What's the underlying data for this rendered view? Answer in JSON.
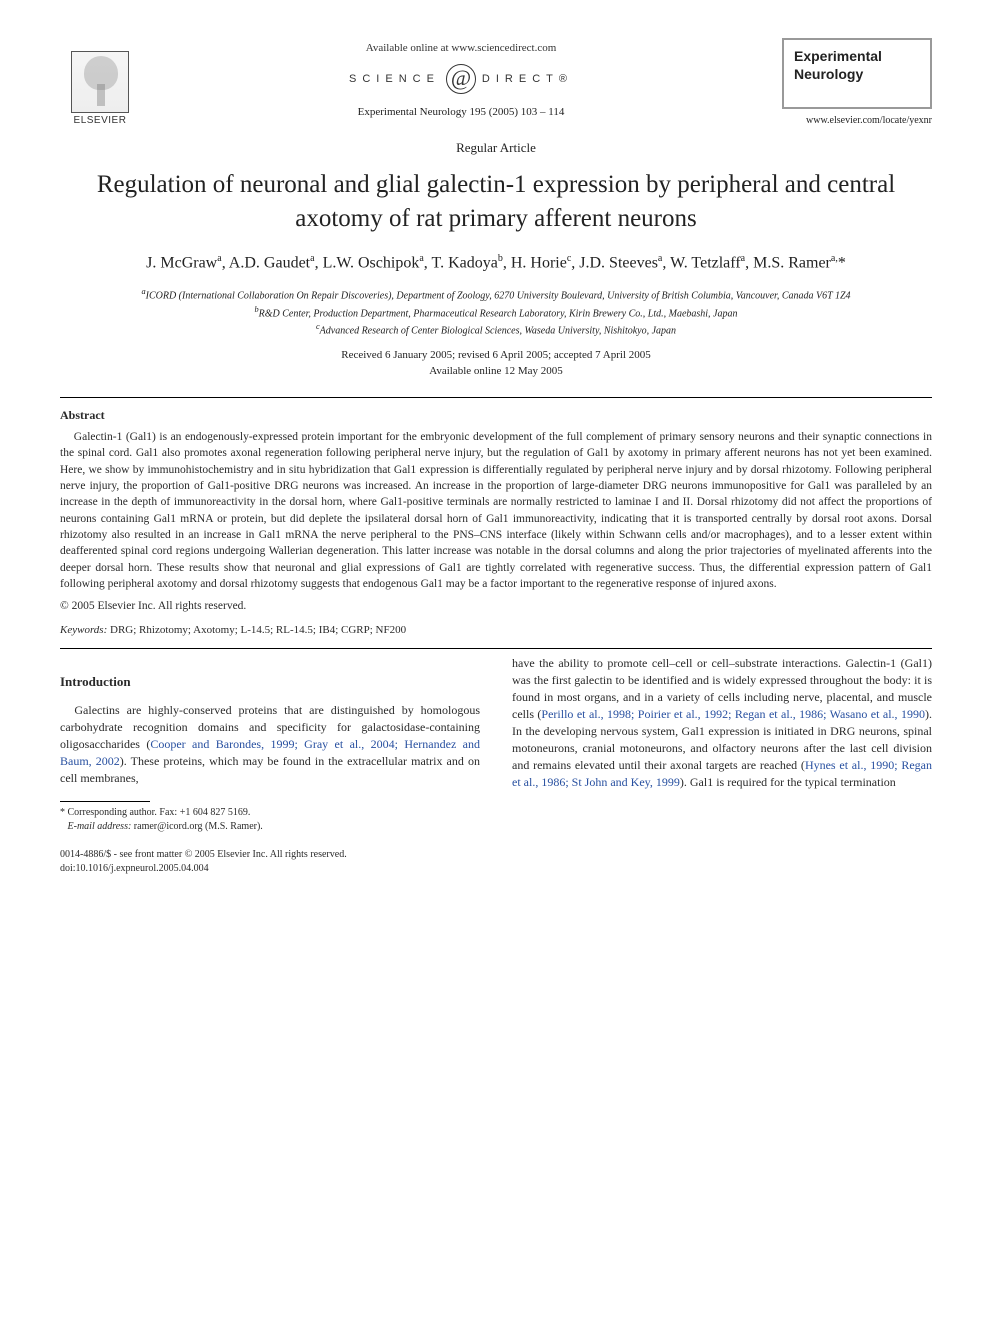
{
  "header": {
    "available_online": "Available online at www.sciencedirect.com",
    "science_direct_left": "SCIENCE",
    "science_direct_right": "DIRECT®",
    "journal_ref": "Experimental Neurology 195 (2005) 103 – 114",
    "publisher_name": "ELSEVIER",
    "journal_title_box": "Experimental Neurology",
    "journal_url": "www.elsevier.com/locate/yexnr"
  },
  "article": {
    "type": "Regular Article",
    "title": "Regulation of neuronal and glial galectin-1 expression by peripheral and central axotomy of rat primary afferent neurons",
    "authors_html": "J. McGraw<sup>a</sup>, A.D. Gaudet<sup>a</sup>, L.W. Oschipok<sup>a</sup>, T. Kadoya<sup>b</sup>, H. Horie<sup>c</sup>, J.D. Steeves<sup>a</sup>, W. Tetzlaff<sup>a</sup>, M.S. Ramer<sup>a,</sup>*",
    "affiliations": {
      "a": "ICORD (International Collaboration On Repair Discoveries), Department of Zoology, 6270 University Boulevard, University of British Columbia, Vancouver, Canada V6T 1Z4",
      "b": "R&D Center, Production Department, Pharmaceutical Research Laboratory, Kirin Brewery Co., Ltd., Maebashi, Japan",
      "c": "Advanced Research of Center Biological Sciences, Waseda University, Nishitokyo, Japan"
    },
    "dates": {
      "received_revised_accepted": "Received 6 January 2005; revised 6 April 2005; accepted 7 April 2005",
      "online": "Available online 12 May 2005"
    }
  },
  "abstract": {
    "heading": "Abstract",
    "body": "Galectin-1 (Gal1) is an endogenously-expressed protein important for the embryonic development of the full complement of primary sensory neurons and their synaptic connections in the spinal cord. Gal1 also promotes axonal regeneration following peripheral nerve injury, but the regulation of Gal1 by axotomy in primary afferent neurons has not yet been examined. Here, we show by immunohistochemistry and in situ hybridization that Gal1 expression is differentially regulated by peripheral nerve injury and by dorsal rhizotomy. Following peripheral nerve injury, the proportion of Gal1-positive DRG neurons was increased. An increase in the proportion of large-diameter DRG neurons immunopositive for Gal1 was paralleled by an increase in the depth of immunoreactivity in the dorsal horn, where Gal1-positive terminals are normally restricted to laminae I and II. Dorsal rhizotomy did not affect the proportions of neurons containing Gal1 mRNA or protein, but did deplete the ipsilateral dorsal horn of Gal1 immunoreactivity, indicating that it is transported centrally by dorsal root axons. Dorsal rhizotomy also resulted in an increase in Gal1 mRNA the nerve peripheral to the PNS–CNS interface (likely within Schwann cells and/or macrophages), and to a lesser extent within deafferented spinal cord regions undergoing Wallerian degeneration. This latter increase was notable in the dorsal columns and along the prior trajectories of myelinated afferents into the deeper dorsal horn. These results show that neuronal and glial expressions of Gal1 are tightly correlated with regenerative success. Thus, the differential expression pattern of Gal1 following peripheral axotomy and dorsal rhizotomy suggests that endogenous Gal1 may be a factor important to the regenerative response of injured axons.",
    "copyright": "© 2005 Elsevier Inc. All rights reserved."
  },
  "keywords": {
    "label": "Keywords:",
    "list": "DRG; Rhizotomy; Axotomy; L-14.5; RL-14.5; IB4; CGRP; NF200"
  },
  "intro": {
    "heading": "Introduction",
    "col1_p1_a": "Galectins are highly-conserved proteins that are distinguished by homologous carbohydrate recognition domains and specificity for galactosidase-containing oligosaccharides (",
    "col1_ref1": "Cooper and Barondes, 1999; Gray et al., 2004; Hernandez and Baum, 2002",
    "col1_p1_b": "). These proteins, which may be found in the extracellular matrix and on cell membranes,",
    "col2_p1_a": "have the ability to promote cell–cell or cell–substrate interactions. Galectin-1 (Gal1) was the first galectin to be identified and is widely expressed throughout the body: it is found in most organs, and in a variety of cells including nerve, placental, and muscle cells (",
    "col2_ref1": "Perillo et al., 1998; Poirier et al., 1992; Regan et al., 1986; Wasano et al., 1990",
    "col2_p1_b": "). In the developing nervous system, Gal1 expression is initiated in DRG neurons, spinal motoneurons, cranial motoneurons, and olfactory neurons after the last cell division and remains elevated until their axonal targets are reached (",
    "col2_ref2": "Hynes et al., 1990; Regan et al., 1986; St John and Key, 1999",
    "col2_p1_c": "). Gal1 is required for the typical termination"
  },
  "footnote": {
    "corresponding": "* Corresponding author. Fax: +1 604 827 5169.",
    "email_label": "E-mail address:",
    "email": "ramer@icord.org (M.S. Ramer)."
  },
  "bottom": {
    "issn_line": "0014-4886/$ - see front matter © 2005 Elsevier Inc. All rights reserved.",
    "doi": "doi:10.1016/j.expneurol.2005.04.004"
  },
  "colors": {
    "link": "#2850a0",
    "text": "#2a2a2a",
    "rule": "#000000"
  }
}
